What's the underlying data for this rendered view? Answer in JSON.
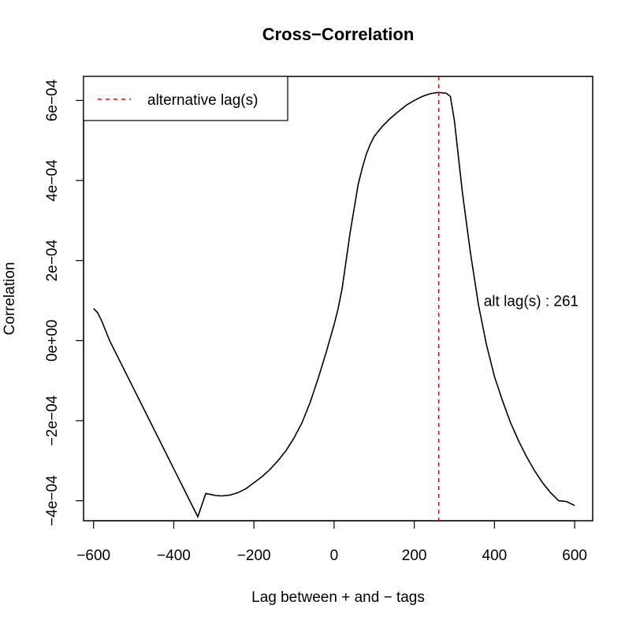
{
  "chart_data": {
    "type": "line",
    "title": "Cross−Correlation",
    "xlabel": "Lag between + and − tags",
    "ylabel": "Correlation",
    "xlim": [
      -625,
      645
    ],
    "ylim": [
      -0.00045,
      0.00066
    ],
    "x_ticks": [
      -600,
      -400,
      -200,
      0,
      200,
      400,
      600
    ],
    "x_tick_labels": [
      "−600",
      "−400",
      "−200",
      "0",
      "200",
      "400",
      "600"
    ],
    "y_ticks": [
      -0.0004,
      -0.0002,
      0,
      0.0002,
      0.0004,
      0.0006
    ],
    "y_tick_labels": [
      "−4e−04",
      "−2e−04",
      "0e+00",
      "2e−04",
      "4e−04",
      "6e−04"
    ],
    "grid": false,
    "legend": {
      "position": "top-left",
      "entries": [
        {
          "label": "alternative lag(s)",
          "color": "#ff0000",
          "linestyle": "dashed"
        }
      ]
    },
    "series": [
      {
        "color": "#000000",
        "x": [
          -600,
          -590,
          -580,
          -560,
          -540,
          -520,
          -500,
          -480,
          -460,
          -440,
          -420,
          -400,
          -380,
          -360,
          -340,
          -320,
          -305,
          -295,
          -280,
          -260,
          -240,
          -220,
          -200,
          -180,
          -160,
          -140,
          -120,
          -100,
          -80,
          -60,
          -40,
          -20,
          0,
          10,
          20,
          30,
          40,
          50,
          60,
          70,
          80,
          90,
          100,
          120,
          140,
          160,
          180,
          200,
          220,
          240,
          260,
          280,
          290,
          300,
          310,
          320,
          340,
          360,
          380,
          400,
          420,
          440,
          460,
          480,
          500,
          520,
          540,
          560,
          580,
          600
        ],
        "y": [
          8e-05,
          7e-05,
          5e-05,
          0.0,
          -4e-05,
          -8e-05,
          -0.00012,
          -0.00016,
          -0.0002,
          -0.00024,
          -0.00028,
          -0.00032,
          -0.00036,
          -0.0004,
          -0.00044,
          -0.00048,
          -0.000385,
          -0.000387,
          -0.000388,
          -0.000386,
          -0.00038,
          -0.00037,
          -0.000355,
          -0.00034,
          -0.000322,
          -0.0003,
          -0.000275,
          -0.000243,
          -0.000205,
          -0.000155,
          -9.5e-05,
          -3e-05,
          4e-05,
          8e-05,
          0.00013,
          0.0002,
          0.00027,
          0.00033,
          0.00039,
          0.00043,
          0.000465,
          0.00049,
          0.00051,
          0.000535,
          0.000555,
          0.000572,
          0.000588,
          0.0006,
          0.00061,
          0.000617,
          0.00062,
          0.000618,
          0.00061,
          0.00055,
          0.00046,
          0.00037,
          0.00022,
          9e-05,
          -1e-05,
          -9e-05,
          -0.00015,
          -0.000205,
          -0.00025,
          -0.00029,
          -0.000325,
          -0.000355,
          -0.00038,
          -0.0004,
          -0.000402,
          -0.000412
        ]
      }
    ],
    "reference_lines": [
      {
        "orientation": "vertical",
        "x": 261,
        "color": "#ff0000",
        "linestyle": "dashed"
      }
    ],
    "annotations": [
      {
        "text": "alt lag(s) : 261",
        "x": 440,
        "y": 0.0001
      }
    ]
  }
}
